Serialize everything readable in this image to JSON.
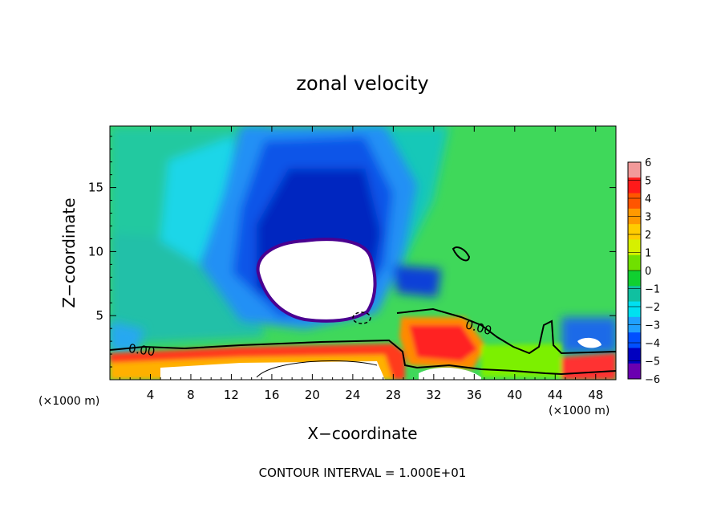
{
  "chart_data": {
    "type": "heatmap",
    "title": "zonal velocity",
    "xlabel": "X−coordinate",
    "ylabel": "Z−coordinate",
    "x_unit_left": "(×1000 m)",
    "x_unit_right": "(×1000 m)",
    "x_ticks": [
      4,
      8,
      12,
      16,
      20,
      24,
      28,
      32,
      36,
      40,
      44,
      48
    ],
    "y_ticks": [
      5,
      10,
      15
    ],
    "xlim": [
      0,
      50
    ],
    "ylim": [
      0,
      19.8
    ],
    "colorbar": {
      "levels": [
        6,
        5,
        4,
        3,
        2,
        1,
        0,
        -1,
        -2,
        -3,
        -4,
        -5,
        -6
      ],
      "labels": [
        "6",
        "5",
        "4",
        "3",
        "2",
        "1",
        "0",
        "−1",
        "−2",
        "−3",
        "−4",
        "−5",
        "−6"
      ],
      "colors": [
        "#f29a9a",
        "#ff1a1a",
        "#ff5500",
        "#ff9900",
        "#ffcc00",
        "#d6f000",
        "#70e000",
        "#10d030",
        "#10c0a0",
        "#00e0f0",
        "#20a0ff",
        "#0050ff",
        "#0000c0",
        "#6a00b0"
      ]
    },
    "background_color": "#44d94a",
    "contour_labels": [
      {
        "text": "0.00",
        "x": 2.6,
        "z": 2.1
      },
      {
        "text": "0.00",
        "x": 36.0,
        "z": 3.9
      }
    ],
    "regions": [
      {
        "type": "min",
        "x": 22.0,
        "z": 8.0,
        "value": -6,
        "note": "white region, below −6"
      },
      {
        "type": "max",
        "x": 33.5,
        "z": 3.0,
        "value": 4
      },
      {
        "type": "max",
        "x": 47.5,
        "z": 2.8,
        "value": -5
      }
    ],
    "contour_interval": "CONTOUR INTERVAL = 1.000E+01"
  }
}
